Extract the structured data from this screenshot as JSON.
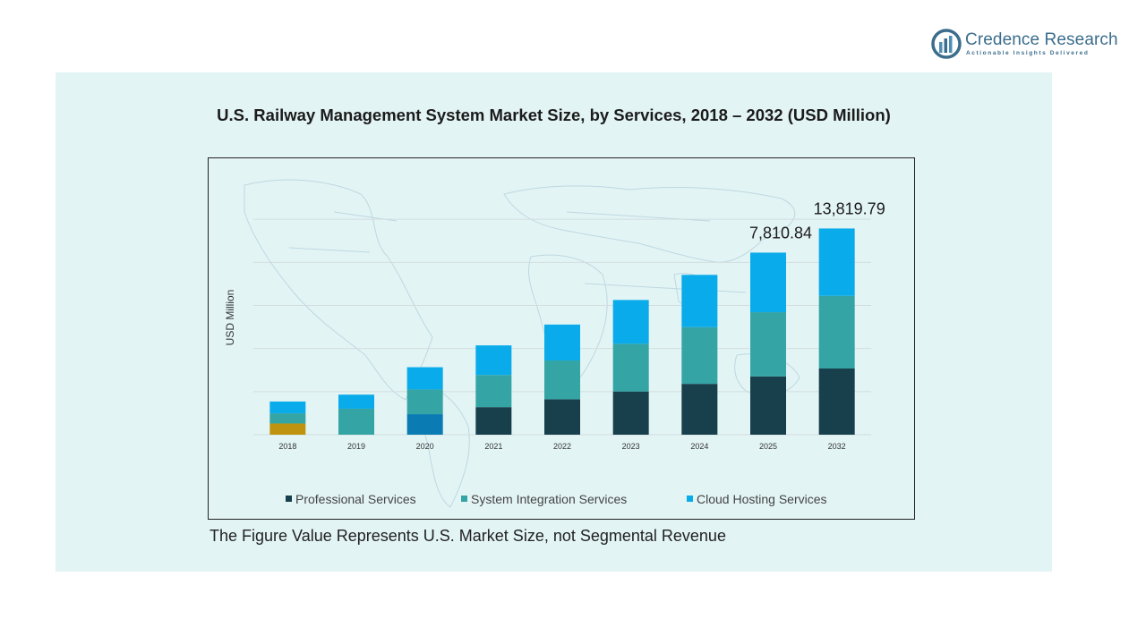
{
  "brand": {
    "name": "Credence Research",
    "tagline": "Actionable Insights Delivered"
  },
  "colors": {
    "panel": "#e3f4f5",
    "professional": "#173f4c",
    "integration": "#35a4a4",
    "cloud": "#0aabea",
    "anomaly_2018": "#bf930f",
    "anomaly_2020": "#0b7bb3"
  },
  "footnote": "The Figure Value Represents U.S. Market Size, not Segmental Revenue",
  "chart_data": {
    "type": "bar",
    "stacked": true,
    "title": "U.S. Railway Management System Market Size, by Services, 2018 – 2032 (USD Million)",
    "xlabel": "",
    "ylabel": "USD Million",
    "ylim": [
      0,
      18000
    ],
    "grid": true,
    "legend_position": "bottom",
    "categories": [
      "2018",
      "2019",
      "2020",
      "2021",
      "2022",
      "2023",
      "2024",
      "2025",
      "2032"
    ],
    "series": [
      {
        "name": "Professional Services",
        "values": [
          780,
          0,
          1430,
          1920,
          2470,
          3010,
          3540,
          4060,
          4610
        ]
      },
      {
        "name": "System Integration Services",
        "values": [
          710,
          1810,
          1720,
          2240,
          2700,
          3320,
          3950,
          4470,
          5060
        ]
      },
      {
        "name": "Cloud Hosting Services",
        "values": [
          820,
          980,
          1550,
          2060,
          2500,
          3050,
          3640,
          4150,
          4690
        ]
      }
    ],
    "data_labels": [
      {
        "category": "2025",
        "text": "7,810.84"
      },
      {
        "category": "2032",
        "text": "13,819.79"
      }
    ]
  }
}
